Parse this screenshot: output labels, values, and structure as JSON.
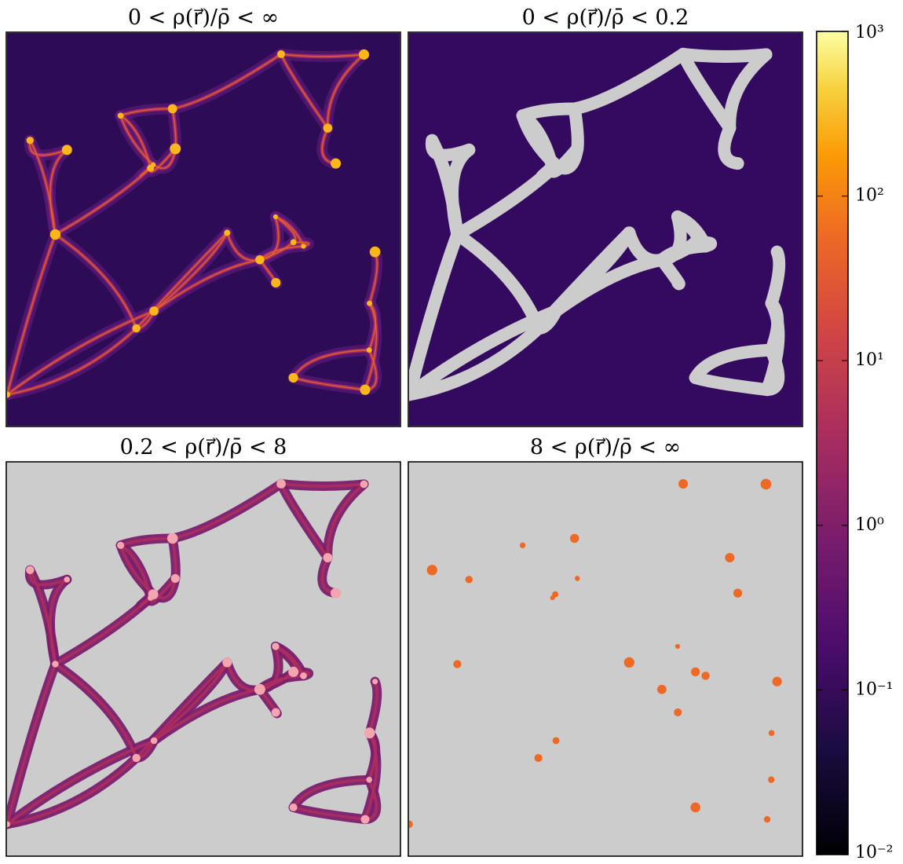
{
  "panels": [
    {
      "title": "0 < ρ(r⃗)/ρ̄ < ∞",
      "style": "full"
    },
    {
      "title": "0 < ρ(r⃗)/ρ̄ < 0.2",
      "style": "low"
    },
    {
      "title": "0.2 < ρ(r⃗)/ρ̄ < 8",
      "style": "mid"
    },
    {
      "title": "8 < ρ(r⃗)/ρ̄ < ∞",
      "style": "high"
    }
  ],
  "colorbar": {
    "scale": "log",
    "colormap": "inferno",
    "lim": [
      0.01,
      1000
    ],
    "ticks": [
      {
        "value": 0.01,
        "label": "10⁻²"
      },
      {
        "value": 0.1,
        "label": "10⁻¹"
      },
      {
        "value": 1,
        "label": "10⁰"
      },
      {
        "value": 10,
        "label": "10¹"
      },
      {
        "value": 100,
        "label": "10²"
      },
      {
        "value": 1000,
        "label": "10³"
      }
    ]
  }
}
